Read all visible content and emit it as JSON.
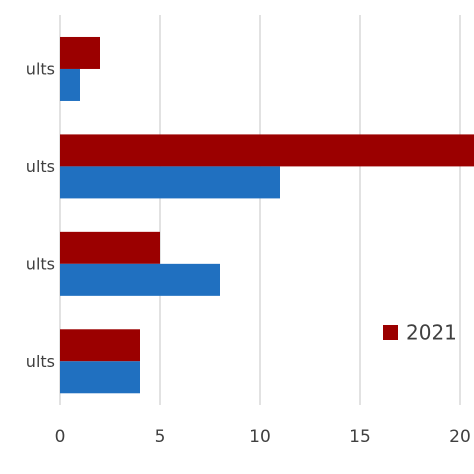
{
  "chart_data": {
    "type": "bar",
    "orientation": "horizontal",
    "categories": [
      "ults",
      "ults",
      "ults",
      "ults"
    ],
    "series": [
      {
        "name": "2021",
        "color": "#9b0000",
        "values": [
          2,
          21,
          5,
          4
        ]
      },
      {
        "color": "#2070c0",
        "values": [
          1,
          11,
          8,
          4
        ]
      }
    ],
    "xlim": [
      0,
      20.7
    ],
    "xticks": [
      0,
      5,
      10,
      15,
      20
    ],
    "grid": true,
    "legend": "lower right"
  }
}
